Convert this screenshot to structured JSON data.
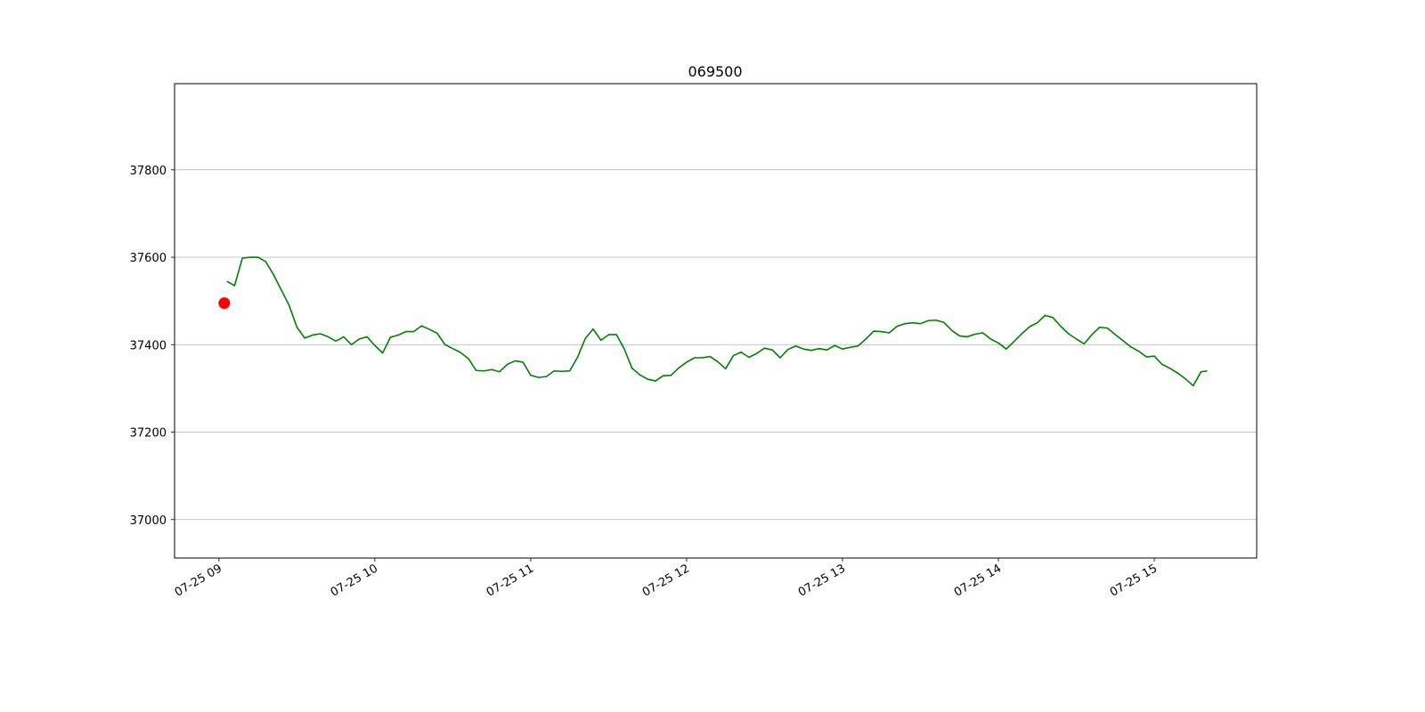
{
  "chart_data": {
    "type": "line",
    "title": "069500",
    "x": [
      9.05,
      9.1,
      9.15,
      9.2,
      9.25,
      9.3,
      9.35,
      9.4,
      9.45,
      9.5,
      9.55,
      9.6,
      9.65,
      9.7,
      9.75,
      9.8,
      9.85,
      9.9,
      9.95,
      10.0,
      10.05,
      10.1,
      10.15,
      10.2,
      10.25,
      10.3,
      10.35,
      10.4,
      10.45,
      10.5,
      10.55,
      10.6,
      10.65,
      10.7,
      10.75,
      10.8,
      10.85,
      10.9,
      10.95,
      11.0,
      11.05,
      11.1,
      11.15,
      11.2,
      11.25,
      11.3,
      11.35,
      11.4,
      11.45,
      11.5,
      11.55,
      11.6,
      11.65,
      11.7,
      11.75,
      11.8,
      11.85,
      11.9,
      11.95,
      12.0,
      12.05,
      12.1,
      12.15,
      12.2,
      12.25,
      12.3,
      12.35,
      12.4,
      12.45,
      12.5,
      12.55,
      12.6,
      12.65,
      12.7,
      12.75,
      12.8,
      12.85,
      12.9,
      12.95,
      13.0,
      13.05,
      13.1,
      13.15,
      13.2,
      13.25,
      13.3,
      13.35,
      13.4,
      13.45,
      13.5,
      13.55,
      13.6,
      13.65,
      13.7,
      13.75,
      13.8,
      13.85,
      13.9,
      13.95,
      14.0,
      14.05,
      14.1,
      14.15,
      14.2,
      14.25,
      14.3,
      14.35,
      14.4,
      14.45,
      14.5,
      14.55,
      14.6,
      14.65,
      14.7,
      14.75,
      14.8,
      14.85,
      14.9,
      14.95,
      15.0,
      15.05,
      15.1,
      15.15,
      15.2,
      15.25,
      15.3,
      15.34
    ],
    "values": [
      37545,
      37535,
      37598,
      37600,
      37600,
      37590,
      37560,
      37525,
      37490,
      37440,
      37415,
      37422,
      37425,
      37418,
      37408,
      37418,
      37400,
      37413,
      37418,
      37398,
      37381,
      37417,
      37422,
      37430,
      37430,
      37443,
      37435,
      37426,
      37400,
      37391,
      37382,
      37368,
      37341,
      37340,
      37343,
      37338,
      37355,
      37363,
      37360,
      37330,
      37325,
      37327,
      37340,
      37339,
      37340,
      37371,
      37414,
      37436,
      37410,
      37423,
      37423,
      37390,
      37346,
      37331,
      37321,
      37317,
      37329,
      37330,
      37347,
      37360,
      37370,
      37370,
      37373,
      37361,
      37345,
      37375,
      37383,
      37371,
      37380,
      37392,
      37388,
      37370,
      37389,
      37397,
      37390,
      37387,
      37391,
      37388,
      37398,
      37390,
      37394,
      37397,
      37413,
      37431,
      37430,
      37427,
      37442,
      37448,
      37450,
      37448,
      37455,
      37456,
      37451,
      37433,
      37420,
      37418,
      37424,
      37427,
      37413,
      37404,
      37390,
      37407,
      37425,
      37441,
      37450,
      37467,
      37462,
      37442,
      37425,
      37413,
      37402,
      37423,
      37440,
      37438,
      37423,
      37409,
      37395,
      37385,
      37372,
      37374,
      37355,
      37346,
      37335,
      37322,
      37306,
      37338,
      37340
    ],
    "color": "#008000",
    "points": [
      {
        "x": 9.034,
        "y": 37495,
        "color": "#ff0000"
      }
    ],
    "xlim": [
      8.715,
      15.657
    ],
    "xticks": [
      {
        "value": 9,
        "label": "07-25 09"
      },
      {
        "value": 10,
        "label": "07-25 10"
      },
      {
        "value": 11,
        "label": "07-25 11"
      },
      {
        "value": 12,
        "label": "07-25 12"
      },
      {
        "value": 13,
        "label": "07-25 13"
      },
      {
        "value": 14,
        "label": "07-25 14"
      },
      {
        "value": 15,
        "label": "07-25 15"
      }
    ],
    "ylim": [
      36912,
      37997
    ],
    "yticks": [
      37000,
      37200,
      37400,
      37600,
      37800
    ],
    "grid": "y"
  }
}
